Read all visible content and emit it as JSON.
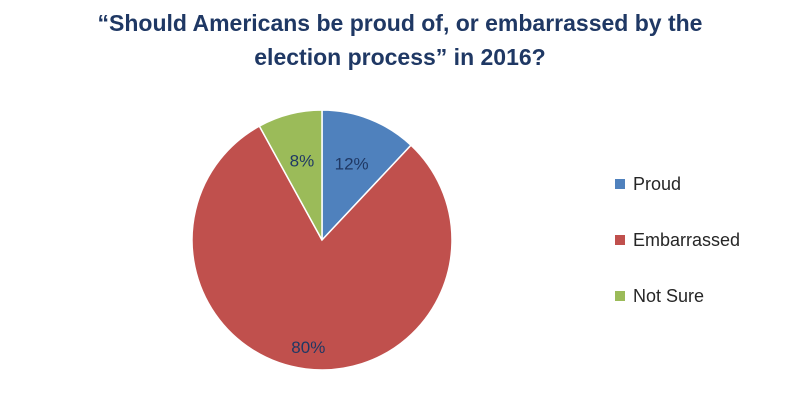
{
  "chart_data": {
    "type": "pie",
    "title_line1": "“Should Americans be proud of, or embarrassed by the",
    "title_line2": "election process” in 2016?",
    "slices": [
      {
        "name": "Proud",
        "value": 12,
        "label": "12%",
        "color": "#4f81bd"
      },
      {
        "name": "Embarrassed",
        "value": 80,
        "label": "80%",
        "color": "#c0504d"
      },
      {
        "name": "Not Sure",
        "value": 8,
        "label": "8%",
        "color": "#9bbb59"
      }
    ],
    "start_angle_deg": 0,
    "direction": "clockwise",
    "legend_position": "right",
    "label_color": "#1f3864"
  }
}
